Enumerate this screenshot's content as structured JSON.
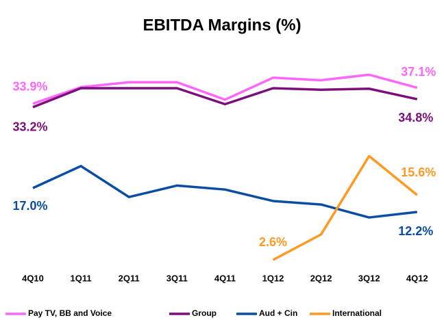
{
  "chart_data": {
    "type": "line",
    "title": "EBITDA Margins (%)",
    "categories": [
      "4Q10",
      "1Q11",
      "2Q11",
      "3Q11",
      "4Q11",
      "1Q12",
      "2Q12",
      "3Q12",
      "4Q12"
    ],
    "series": [
      {
        "name": "Pay TV, BB and Voice",
        "color": "#ff66ff",
        "values": [
          33.9,
          37.2,
          38.2,
          38.2,
          34.7,
          39.1,
          38.6,
          39.7,
          37.1
        ],
        "value_labels": [
          "33.9%",
          null,
          null,
          null,
          null,
          null,
          null,
          null,
          "37.1%"
        ]
      },
      {
        "name": "Group",
        "color": "#7b0f7b",
        "values": [
          33.2,
          37.0,
          37.0,
          37.0,
          33.8,
          37.0,
          36.7,
          36.9,
          34.8
        ],
        "value_labels": [
          "33.2%",
          null,
          null,
          null,
          null,
          null,
          null,
          null,
          "34.8%"
        ]
      },
      {
        "name": "Aud + Cin",
        "color": "#0a4da2",
        "values": [
          17.0,
          21.4,
          15.2,
          17.5,
          16.7,
          14.4,
          13.7,
          11.1,
          12.2
        ],
        "value_labels": [
          "17.0%",
          null,
          null,
          null,
          null,
          null,
          null,
          null,
          "12.2%"
        ]
      },
      {
        "name": "International",
        "color": "#ff9922",
        "values": [
          null,
          null,
          null,
          null,
          null,
          2.6,
          7.7,
          23.4,
          15.6
        ],
        "value_labels": [
          null,
          null,
          null,
          null,
          null,
          "2.6%",
          null,
          null,
          "15.6%"
        ]
      }
    ]
  }
}
